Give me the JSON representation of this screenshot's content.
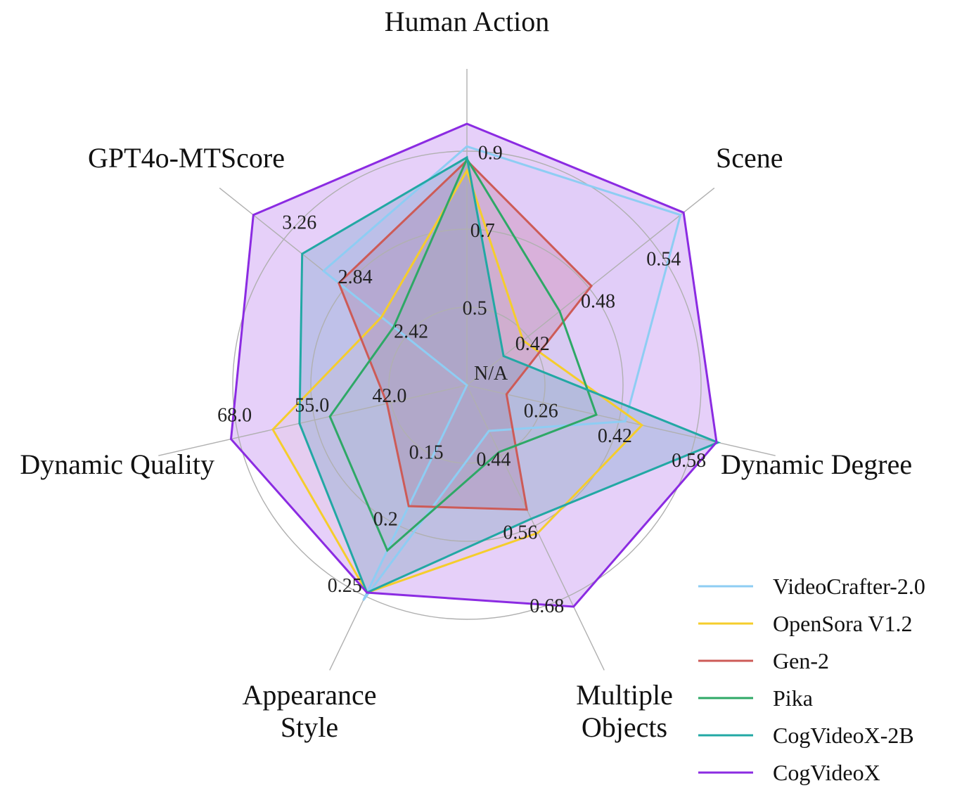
{
  "chart_data": {
    "type": "radar",
    "axes": [
      {
        "label": "Human Action",
        "lines": [
          "Human Action"
        ],
        "ticks": [
          "0.5",
          "0.7",
          "0.9"
        ]
      },
      {
        "label": "Scene",
        "lines": [
          "Scene"
        ],
        "ticks": [
          "0.42",
          "0.48",
          "0.54"
        ]
      },
      {
        "label": "Dynamic Degree",
        "lines": [
          "Dynamic Degree"
        ],
        "ticks": [
          "0.26",
          "0.42",
          "0.58"
        ]
      },
      {
        "label": "Multiple Objects",
        "lines": [
          "Multiple",
          "Objects"
        ],
        "ticks": [
          "0.44",
          "0.56",
          "0.68"
        ]
      },
      {
        "label": "Appearance Style",
        "lines": [
          "Appearance",
          "Style"
        ],
        "ticks": [
          "0.15",
          "0.2",
          "0.25"
        ]
      },
      {
        "label": "Dynamic Quality",
        "lines": [
          "Dynamic Quality"
        ],
        "ticks": [
          "42.0",
          "55.0",
          "68.0"
        ]
      },
      {
        "label": "GPT4o-MTScore",
        "lines": [
          "GPT4o-MTScore"
        ],
        "ticks": [
          "2.42",
          "2.84",
          "3.26"
        ]
      }
    ],
    "center_label": "N/A",
    "tick_levels": [
      1,
      2,
      3
    ],
    "series": [
      {
        "name": "VideoCrafter-2.0",
        "color": "#8ecdf3",
        "fill": false,
        "levels": [
          3.06,
          3.5,
          2.08,
          0.65,
          3.06,
          0.0,
          2.35
        ]
      },
      {
        "name": "OpenSora V1.2",
        "color": "#f5cd2c",
        "fill": false,
        "levels": [
          2.75,
          0.92,
          2.3,
          2.1,
          2.95,
          2.55,
          1.4
        ]
      },
      {
        "name": "Gen-2",
        "color": "#cd5b57",
        "fill": true,
        "levels": [
          2.88,
          2.04,
          0.52,
          1.77,
          1.72,
          1.05,
          2.1
        ]
      },
      {
        "name": "Pika",
        "color": "#2ea866",
        "fill": false,
        "levels": [
          2.9,
          1.52,
          1.7,
          0.95,
          2.35,
          1.8,
          1.2
        ]
      },
      {
        "name": "CogVideoX-2B",
        "color": "#22a8a4",
        "fill": true,
        "levels": [
          2.92,
          0.6,
          3.3,
          1.9,
          2.95,
          2.2,
          2.7
        ]
      },
      {
        "name": "CogVideoX",
        "color": "#8b2be2",
        "fill": true,
        "levels": [
          3.35,
          3.55,
          3.28,
          3.15,
          2.95,
          3.1,
          3.5
        ]
      }
    ],
    "legend_position": "bottom-right",
    "grid": true
  }
}
